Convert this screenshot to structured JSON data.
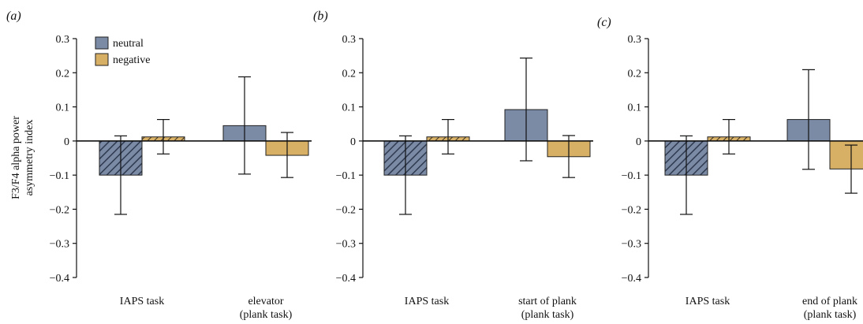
{
  "colors": {
    "neutral": "#7b8aa5",
    "negative": "#d8b065",
    "hatch": "#2f3a4f",
    "hatch_negative": "#3a3020"
  },
  "legend": [
    "neutral",
    "negative"
  ],
  "ylabel_lines": [
    "F3/F4 alpha power",
    "asymmetry index"
  ],
  "chart_data": [
    {
      "type": "bar",
      "panel": "(a)",
      "categories": [
        [
          "IAPS task"
        ],
        [
          "elevator",
          "(plank task)"
        ]
      ],
      "yticks": [
        "0.3",
        "0.2",
        "0.1",
        "0",
        "−0.1",
        "−0.2",
        "−0.3",
        "−0.4"
      ],
      "ylim": [
        -0.4,
        0.3
      ],
      "series": [
        {
          "name": "neutral",
          "values": [
            -0.1,
            0.045
          ],
          "err_low": [
            -0.215,
            -0.097
          ],
          "err_high": [
            0.015,
            0.188
          ]
        },
        {
          "name": "negative",
          "values": [
            0.012,
            -0.042
          ],
          "err_low": [
            -0.038,
            -0.107
          ],
          "err_high": [
            0.063,
            0.025
          ]
        }
      ]
    },
    {
      "type": "bar",
      "panel": "(b)",
      "categories": [
        [
          "IAPS task"
        ],
        [
          "start of plank",
          "(plank task)"
        ]
      ],
      "yticks": [
        "0.3",
        "0.2",
        "0.1",
        "0",
        "−0.1",
        "−0.2",
        "−0.3",
        "−0.4"
      ],
      "ylim": [
        -0.4,
        0.3
      ],
      "series": [
        {
          "name": "neutral",
          "values": [
            -0.1,
            0.092
          ],
          "err_low": [
            -0.215,
            -0.058
          ],
          "err_high": [
            0.015,
            0.243
          ]
        },
        {
          "name": "negative",
          "values": [
            0.012,
            -0.046
          ],
          "err_low": [
            -0.038,
            -0.107
          ],
          "err_high": [
            0.063,
            0.016
          ]
        }
      ]
    },
    {
      "type": "bar",
      "panel": "(c)",
      "categories": [
        [
          "IAPS task"
        ],
        [
          "end of plank",
          "(plank task)"
        ]
      ],
      "yticks": [
        "0.3",
        "0.2",
        "0.1",
        "0",
        "−0.1",
        "−0.2",
        "−0.3",
        "−0.4"
      ],
      "ylim": [
        -0.4,
        0.3
      ],
      "series": [
        {
          "name": "neutral",
          "values": [
            -0.1,
            0.063
          ],
          "err_low": [
            -0.215,
            -0.083
          ],
          "err_high": [
            0.015,
            0.209
          ]
        },
        {
          "name": "negative",
          "values": [
            0.012,
            -0.082
          ],
          "err_low": [
            -0.038,
            -0.153
          ],
          "err_high": [
            0.063,
            -0.012
          ]
        }
      ]
    }
  ]
}
